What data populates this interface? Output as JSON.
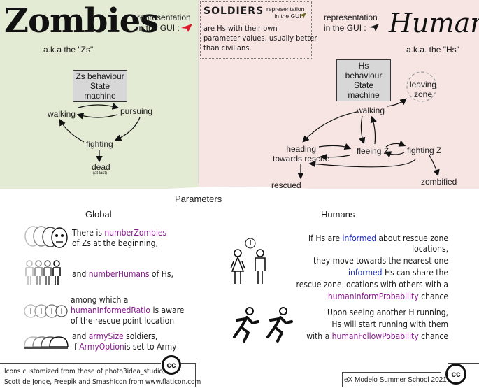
{
  "zombies": {
    "title": "Zombies",
    "gui_label_line1": "representation",
    "gui_label_line2": "in the GUI :",
    "aka": "a.k.a the \"Zs\"",
    "box_line1": "Zs behaviour",
    "box_line2": "State machine",
    "states": {
      "walking": "walking",
      "pursuing": "pursuing",
      "fighting": "fighting",
      "dead": "dead",
      "dead_note": "(at last)"
    },
    "color": "#e3ebd5",
    "icon_color": "#e0182b"
  },
  "soldiers": {
    "title": "SOLDIERS",
    "gui_label_line1": "representation",
    "gui_label_line2": "in the GUI :",
    "desc_line1": "are Hs with their own",
    "desc_line2": "parameter values, usually better",
    "desc_line3": "than civilians.",
    "icon_color": "#6b6a1e"
  },
  "humans": {
    "title": "Humans",
    "gui_label_line1": "representation",
    "gui_label_line2": "in the GUI :",
    "aka": "a.k.a. the \"Hs\"",
    "box_line1": "Hs behaviour",
    "box_line2": "State machine",
    "states": {
      "leaving_line1": "leaving",
      "leaving_line2": "zone",
      "walking": "walking",
      "heading_line1": "heading",
      "heading_line2": "towards rescue",
      "fleeing": "fleeing Z",
      "fighting": "fighting Z",
      "rescued": "rescued",
      "zombified": "zombified"
    },
    "color": "#f7e5e4",
    "icon_color": "#1a1a1a"
  },
  "parameters": {
    "title": "Parameters",
    "global_title": "Global",
    "humans_title": "Humans",
    "global": {
      "p1_a": "There is ",
      "p1_var": "numberZombies",
      "p1_b": "of Zs at the beginning,",
      "p2_a": "and ",
      "p2_var": "numberHumans",
      "p2_b": " of Hs,",
      "p3_a": "among which a",
      "p3_var": "humanInformedRatio",
      "p3_b": " is aware",
      "p3_c": "of the rescue point location",
      "p4_a": "and ",
      "p4_var": "armySize",
      "p4_b": " soldiers,",
      "p4_c": "if ",
      "p4_var2": "ArmyOption",
      "p4_d": "is set to Army"
    },
    "humans": {
      "h1_a": "If Hs are ",
      "h1_var": "informed",
      "h1_b": " about rescue zone locations,",
      "h1_c": "they move towards the nearest one",
      "h1_var2": "informed",
      "h1_d": " Hs can share the",
      "h1_e": "rescue zone locations with others with a",
      "h1_var3": "humanInformProbability",
      "h1_f": " chance",
      "h2_a": "Upon seeing another H running,",
      "h2_b": "Hs will start running with them",
      "h2_c": "with a ",
      "h2_var": "humanFollowPobability",
      "h2_d": " chance"
    }
  },
  "footer": {
    "credits_line1": "Icons customized from those of photo3idea_studio,",
    "credits_line2": "Scott de Jonge, Freepik and  SmashIcon from www.flaticon.com",
    "cc_label": "cc",
    "school": "eX Modelo Summer School 2021"
  }
}
